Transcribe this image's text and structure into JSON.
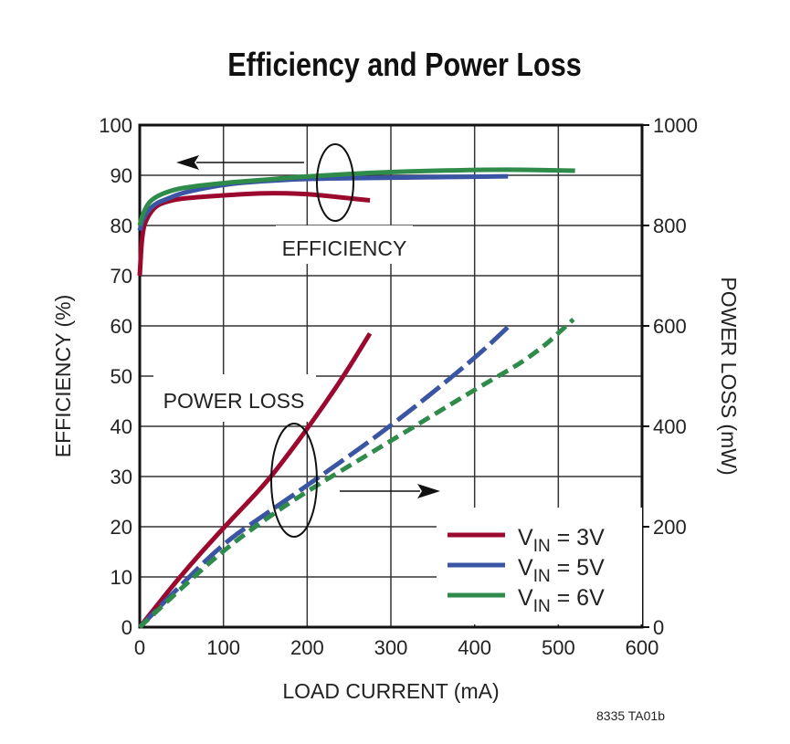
{
  "chart_data": {
    "type": "line",
    "title": "Efficiency and Power Loss",
    "xlabel": "LOAD CURRENT (mA)",
    "ylabel": "EFFICIENCY (%)",
    "y2label": "POWER LOSS (mW)",
    "xlim": [
      0,
      600
    ],
    "ylim": [
      0,
      100
    ],
    "y2lim": [
      0,
      1000
    ],
    "xticks": [
      0,
      100,
      200,
      300,
      400,
      500,
      600
    ],
    "yticks": [
      0,
      10,
      20,
      30,
      40,
      50,
      60,
      70,
      80,
      90,
      100
    ],
    "y2ticks": [
      0,
      200,
      400,
      600,
      800,
      1000
    ],
    "grid": true,
    "legend_position": "bottom-right",
    "annotations": [
      "EFFICIENCY",
      "POWER LOSS"
    ],
    "footnote": "8335 TA01b",
    "series": [
      {
        "name": "VIN = 3V",
        "legend_main": "V",
        "legend_sub": "IN",
        "legend_rest": " = 3V",
        "color": "#9b0a2e",
        "axis": "efficiency",
        "x": [
          0,
          3,
          10,
          20,
          33,
          50,
          100,
          150,
          200,
          240,
          275
        ],
        "y": [
          70,
          79,
          82,
          84,
          84.8,
          85.4,
          86,
          86.5,
          86.3,
          85.6,
          85
        ]
      },
      {
        "name": "VIN = 5V",
        "color": "#3a55a4",
        "axis": "efficiency",
        "x": [
          0,
          3,
          10,
          20,
          33,
          50,
          100,
          150,
          200,
          300,
          440
        ],
        "y": [
          79,
          81,
          83,
          84.5,
          85.3,
          86.5,
          88.2,
          88.9,
          89.3,
          89.5,
          89.8
        ]
      },
      {
        "name": "VIN = 6V",
        "color": "#2e8b4a",
        "axis": "efficiency",
        "x": [
          0,
          3,
          10,
          20,
          33,
          50,
          100,
          150,
          200,
          300,
          430,
          520
        ],
        "y": [
          80,
          82,
          84.5,
          85.8,
          86.7,
          87.5,
          88.5,
          89.1,
          89.8,
          90.7,
          91.2,
          90.9
        ]
      },
      {
        "name": "VIN = 3V",
        "color": "#9b0a2e",
        "axis": "power",
        "style": "solid",
        "x": [
          0,
          50,
          100,
          150,
          180,
          200,
          240,
          275
        ],
        "y": [
          0,
          105,
          198,
          285,
          350,
          395,
          490,
          585
        ]
      },
      {
        "name": "VIN = 5V",
        "color": "#3a55a4",
        "axis": "power",
        "style": "dashed",
        "x": [
          0,
          50,
          100,
          150,
          200,
          300,
          400,
          440
        ],
        "y": [
          0,
          85,
          167,
          225,
          282,
          400,
          535,
          598
        ]
      },
      {
        "name": "VIN = 6V",
        "color": "#2e8b4a",
        "axis": "power",
        "style": "dashed",
        "x": [
          0,
          50,
          100,
          150,
          200,
          300,
          400,
          470,
          518
        ],
        "y": [
          0,
          78,
          153,
          215,
          271,
          371,
          473,
          540,
          613
        ]
      }
    ],
    "legend": [
      {
        "main": "V",
        "sub": "IN",
        "rest": " = 3V",
        "color": "#9b0a2e"
      },
      {
        "main": "V",
        "sub": "IN",
        "rest": " = 5V",
        "color": "#3a55a4"
      },
      {
        "main": "V",
        "sub": "IN",
        "rest": " = 6V",
        "color": "#2e8b4a"
      }
    ]
  }
}
